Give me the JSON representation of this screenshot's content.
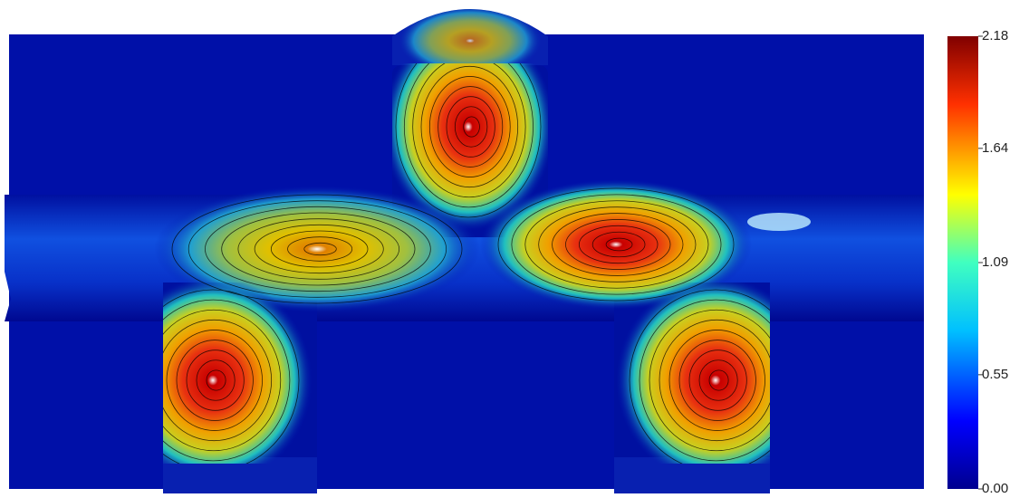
{
  "chart_data": {
    "type": "field",
    "colorbar": {
      "zlim": [
        0,
        2.18
      ],
      "zticks": [
        {
          "value": 0,
          "label": "0.00"
        },
        0.55,
        1.09,
        1.64,
        2.18
      ]
    }
  }
}
